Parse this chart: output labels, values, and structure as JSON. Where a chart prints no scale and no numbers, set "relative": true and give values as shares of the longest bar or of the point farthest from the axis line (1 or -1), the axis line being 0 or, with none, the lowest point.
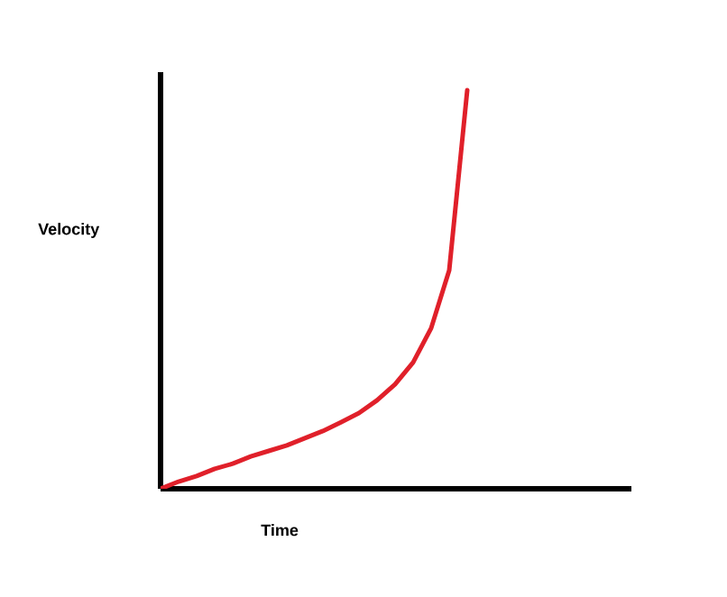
{
  "chart_data": {
    "type": "line",
    "xlabel": "Time",
    "ylabel": "Velocity",
    "relative": true,
    "color": "#e0202a",
    "categories": [
      null,
      null,
      null,
      null,
      null,
      null,
      null,
      null,
      null,
      null,
      null,
      null,
      null,
      null,
      null,
      null,
      null,
      null
    ],
    "values": [
      0,
      0.018,
      0.032,
      0.05,
      0.063,
      0.081,
      0.095,
      0.109,
      0.127,
      0.145,
      0.167,
      0.19,
      0.222,
      0.262,
      0.317,
      0.403,
      0.548,
      1
    ],
    "marker": "none",
    "line_style": "solid"
  }
}
